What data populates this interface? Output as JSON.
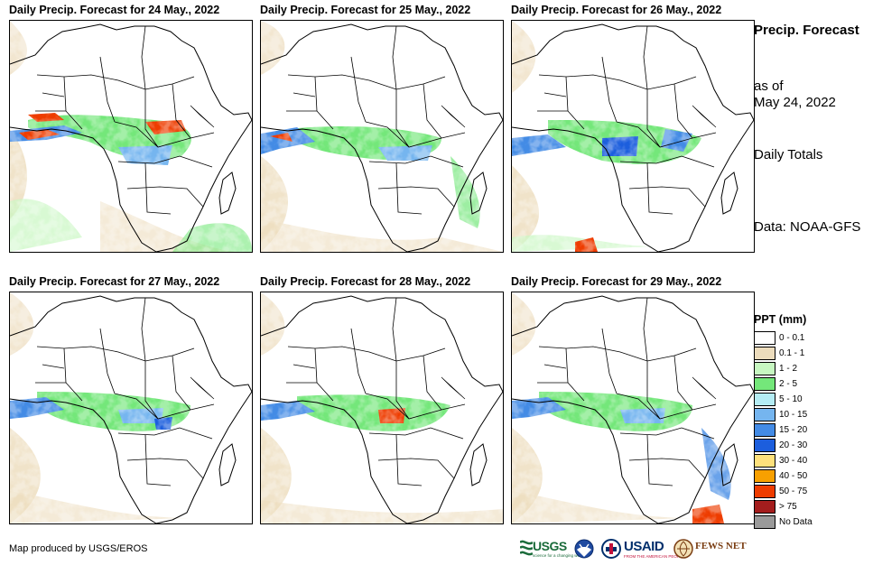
{
  "panels": [
    {
      "title": "Daily Precip. Forecast for 24 May., 2022"
    },
    {
      "title": "Daily Precip. Forecast for 25 May., 2022"
    },
    {
      "title": "Daily Precip. Forecast for 26 May., 2022"
    },
    {
      "title": "Daily Precip. Forecast for 27 May., 2022"
    },
    {
      "title": "Daily Precip. Forecast for 28 May., 2022"
    },
    {
      "title": "Daily Precip. Forecast for 29 May., 2022"
    }
  ],
  "sidebar": {
    "title": "Precip. Forecast",
    "as_of_label": "as of",
    "as_of_date": "May 24, 2022",
    "totals": "Daily Totals",
    "data_source": "Data: NOAA-GFS"
  },
  "legend": {
    "title": "PPT (mm)",
    "items": [
      {
        "label": "0 - 0.1",
        "color": "#ffffff"
      },
      {
        "label": "0.1 - 1",
        "color": "#ecdcbc"
      },
      {
        "label": "1 - 2",
        "color": "#c7f7c1"
      },
      {
        "label": "2 - 5",
        "color": "#74e77a"
      },
      {
        "label": "5 - 10",
        "color": "#b4ecf4"
      },
      {
        "label": "10 - 15",
        "color": "#75b5ef"
      },
      {
        "label": "15 - 20",
        "color": "#438be5"
      },
      {
        "label": "20 - 30",
        "color": "#1c5edd"
      },
      {
        "label": "30 - 40",
        "color": "#ffe17c"
      },
      {
        "label": "40 - 50",
        "color": "#f8a000"
      },
      {
        "label": "50 - 75",
        "color": "#ee3c00"
      },
      {
        "label": "> 75",
        "color": "#a41d1d"
      },
      {
        "label": "No Data",
        "color": "#9a9a9a"
      }
    ]
  },
  "footer": {
    "credit": "Map produced by USGS/EROS"
  },
  "logos": {
    "usgs": "USGS",
    "usgs_tagline": "science for a changing world",
    "noaa": "NOAA",
    "usaid": "USAID",
    "usaid_tagline": "FROM THE AMERICAN PEOPLE",
    "fews": "FEWS NET"
  }
}
